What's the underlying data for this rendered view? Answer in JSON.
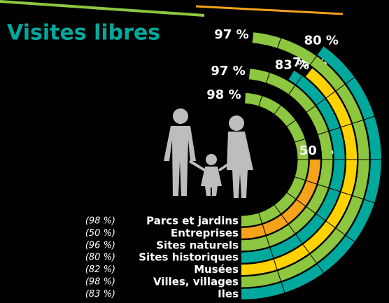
{
  "chart_data": {
    "type": "radial_bar",
    "title": "Visites libres",
    "categories": [
      "Parcs et jardins",
      "Entreprises",
      "Sites naturels",
      "Sites historiques",
      "Musées",
      "Villes, villages",
      "Iles"
    ],
    "notes": [
      "(98 %)",
      "(50 %)",
      "(96 %)",
      "(80 %)",
      "(82 %)",
      "(98 %)",
      "(83 %)"
    ],
    "values": [
      98,
      50,
      97,
      83,
      79,
      97,
      80
    ],
    "value_labels": [
      "98 %",
      "50 %",
      "97 %",
      "83 %",
      "79 %",
      "97 %",
      "80 %"
    ],
    "colors": [
      "#8dc63f",
      "#f7a21b",
      "#8dc63f",
      "#00a99d",
      "#ffd200",
      "#8dc63f",
      "#00a99d"
    ],
    "ylim": [
      0,
      100
    ]
  }
}
